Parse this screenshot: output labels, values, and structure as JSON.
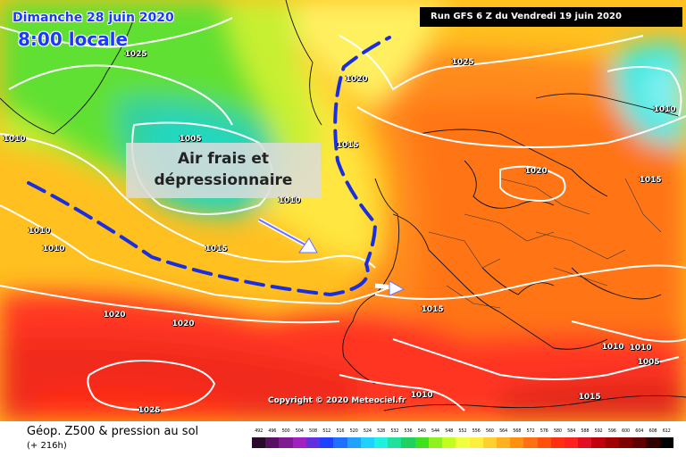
{
  "header": {
    "date": "Dimanche 28 juin 2020",
    "time": "8:00 locale",
    "run": "Run GFS 6 Z du Vendredi 19 juin 2020"
  },
  "annotation": {
    "line1": "Air frais et",
    "line2": "dépressionnaire"
  },
  "copyright": "Copyright © 2020 Meteociel.fr",
  "footer": {
    "title": "Géop. Z500 & pression au sol",
    "subtitle": "(+ 216h)"
  },
  "isobar_labels": [
    "1025",
    "1025",
    "1020",
    "1005",
    "1010",
    "1010",
    "1015",
    "1010",
    "1010",
    "1010",
    "1015",
    "1020",
    "1020",
    "1015",
    "1020",
    "1010",
    "1015",
    "1010",
    "1005",
    "1010",
    "1025",
    "1015"
  ],
  "legend": {
    "values": [
      "492",
      "496",
      "500",
      "504",
      "508",
      "512",
      "516",
      "520",
      "524",
      "528",
      "532",
      "536",
      "540",
      "544",
      "548",
      "552",
      "556",
      "560",
      "564",
      "568",
      "572",
      "576",
      "580",
      "584",
      "588",
      "592",
      "596",
      "600",
      "604",
      "608",
      "612"
    ],
    "colors": [
      "#2a0a2a",
      "#5a1060",
      "#801a90",
      "#a020c0",
      "#6030e0",
      "#2040ff",
      "#2070ff",
      "#20a0ff",
      "#20d0ff",
      "#20f0e0",
      "#20e0a0",
      "#20d060",
      "#40e020",
      "#90f020",
      "#c0ff20",
      "#f0ff40",
      "#ffee40",
      "#ffd030",
      "#ffb020",
      "#ff9010",
      "#ff7010",
      "#ff5010",
      "#ff3010",
      "#ff2020",
      "#e01020",
      "#c00010",
      "#a00000",
      "#800000",
      "#600000",
      "#300000",
      "#000000"
    ]
  },
  "colors": {
    "trough_line": "#1a2ee0",
    "label_text": "#1a3aff"
  }
}
